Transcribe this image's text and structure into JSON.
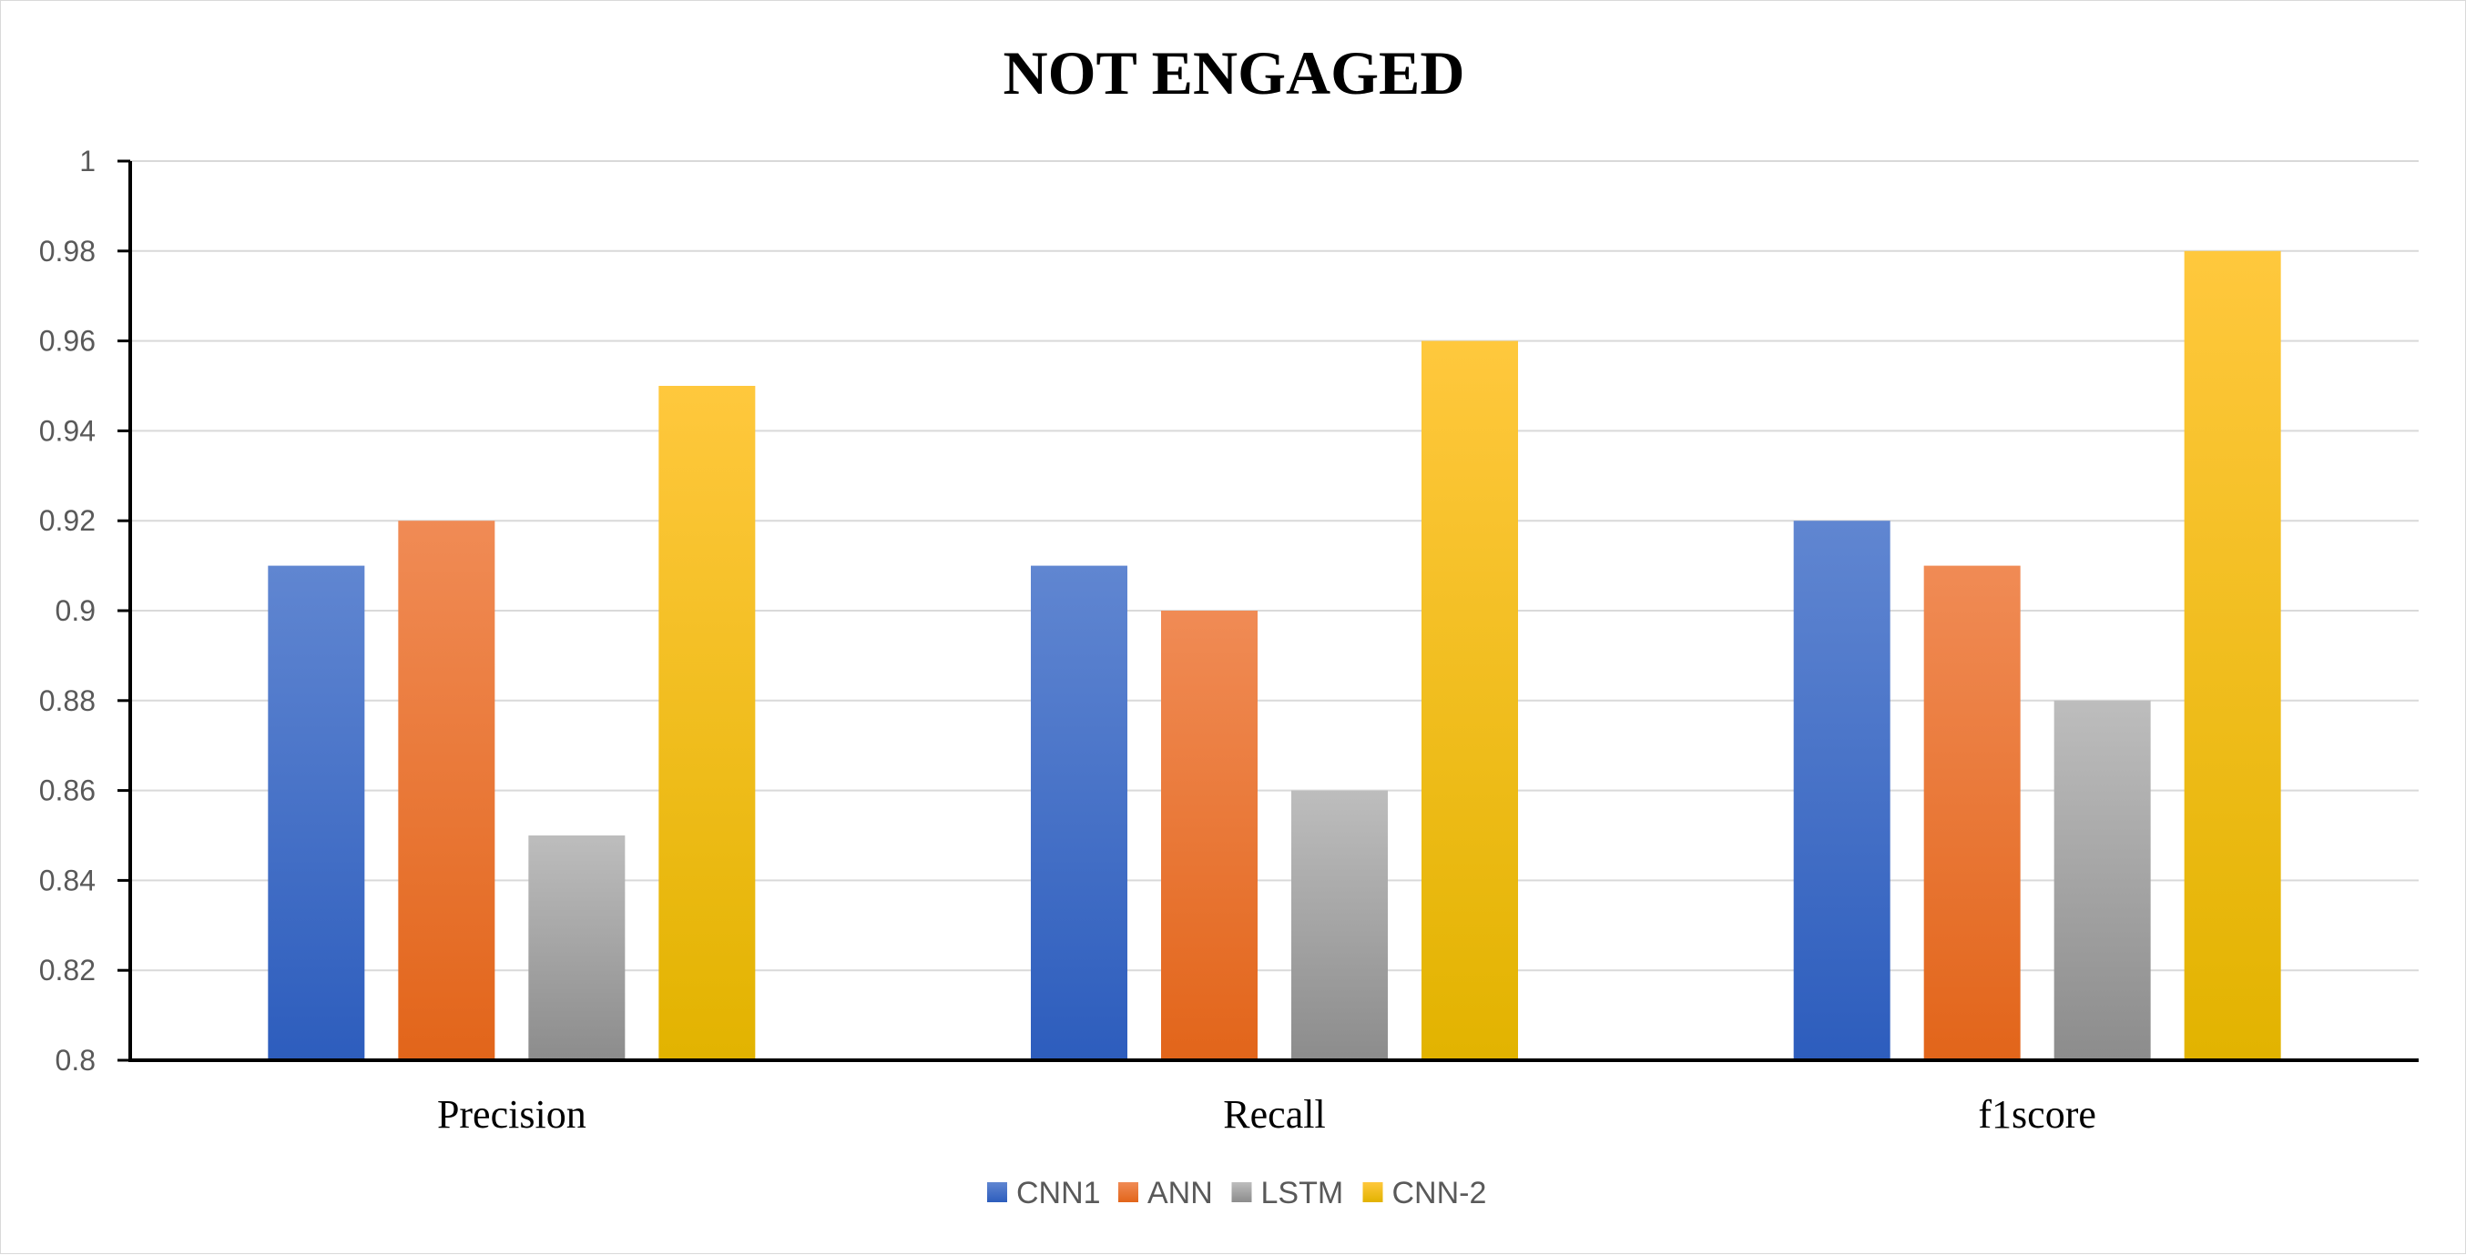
{
  "chart_data": {
    "type": "bar",
    "title": "NOT ENGAGED",
    "xlabel": "",
    "ylabel": "",
    "categories": [
      "Precision",
      "Recall",
      "f1score"
    ],
    "series": [
      {
        "name": "CNN1",
        "values": [
          0.91,
          0.91,
          0.92
        ],
        "color_top": "#6086d1",
        "color_bottom": "#2d5dbd"
      },
      {
        "name": "ANN",
        "values": [
          0.92,
          0.9,
          0.91
        ],
        "color_top": "#f08b55",
        "color_bottom": "#e2651a"
      },
      {
        "name": "LSTM",
        "values": [
          0.85,
          0.86,
          0.88
        ],
        "color_top": "#bdbdbd",
        "color_bottom": "#8c8c8c"
      },
      {
        "name": "CNN-2",
        "values": [
          0.95,
          0.96,
          0.98
        ],
        "color_top": "#ffc83d",
        "color_bottom": "#e2b300"
      }
    ],
    "ylim": [
      0.8,
      1.0
    ],
    "yticks": [
      "0.8",
      "0.82",
      "0.84",
      "0.86",
      "0.88",
      "0.9",
      "0.92",
      "0.94",
      "0.96",
      "0.98",
      "1"
    ],
    "grid": true,
    "legend": "bottom"
  }
}
